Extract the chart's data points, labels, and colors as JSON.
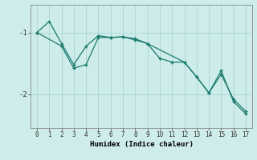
{
  "xlabel": "Humidex (Indice chaleur)",
  "background_color": "#ceecea",
  "line_color": "#1a7a6e",
  "grid_color": "#aed8d5",
  "line1_x": [
    0,
    1,
    2,
    3,
    4,
    5,
    6,
    7,
    8,
    9,
    10,
    11,
    12,
    13,
    14,
    15,
    16,
    17
  ],
  "line1_y": [
    -1.0,
    -0.82,
    -1.18,
    -1.52,
    -1.22,
    -1.05,
    -1.08,
    -1.07,
    -1.12,
    -1.18,
    -1.42,
    -1.48,
    -1.48,
    -1.72,
    -1.98,
    -1.68,
    -2.08,
    -2.28
  ],
  "line2_x": [
    0,
    2,
    3,
    4,
    5,
    6,
    7,
    8,
    9,
    12,
    13,
    14,
    15,
    16,
    17
  ],
  "line2_y": [
    -1.0,
    -1.22,
    -1.58,
    -1.52,
    -1.08,
    -1.08,
    -1.07,
    -1.1,
    -1.18,
    -1.48,
    -1.72,
    -1.98,
    -1.62,
    -2.12,
    -2.32
  ],
  "yticks": [
    -2,
    -1
  ],
  "ylim": [
    -2.55,
    -0.55
  ],
  "xlim": [
    -0.5,
    17.5
  ]
}
